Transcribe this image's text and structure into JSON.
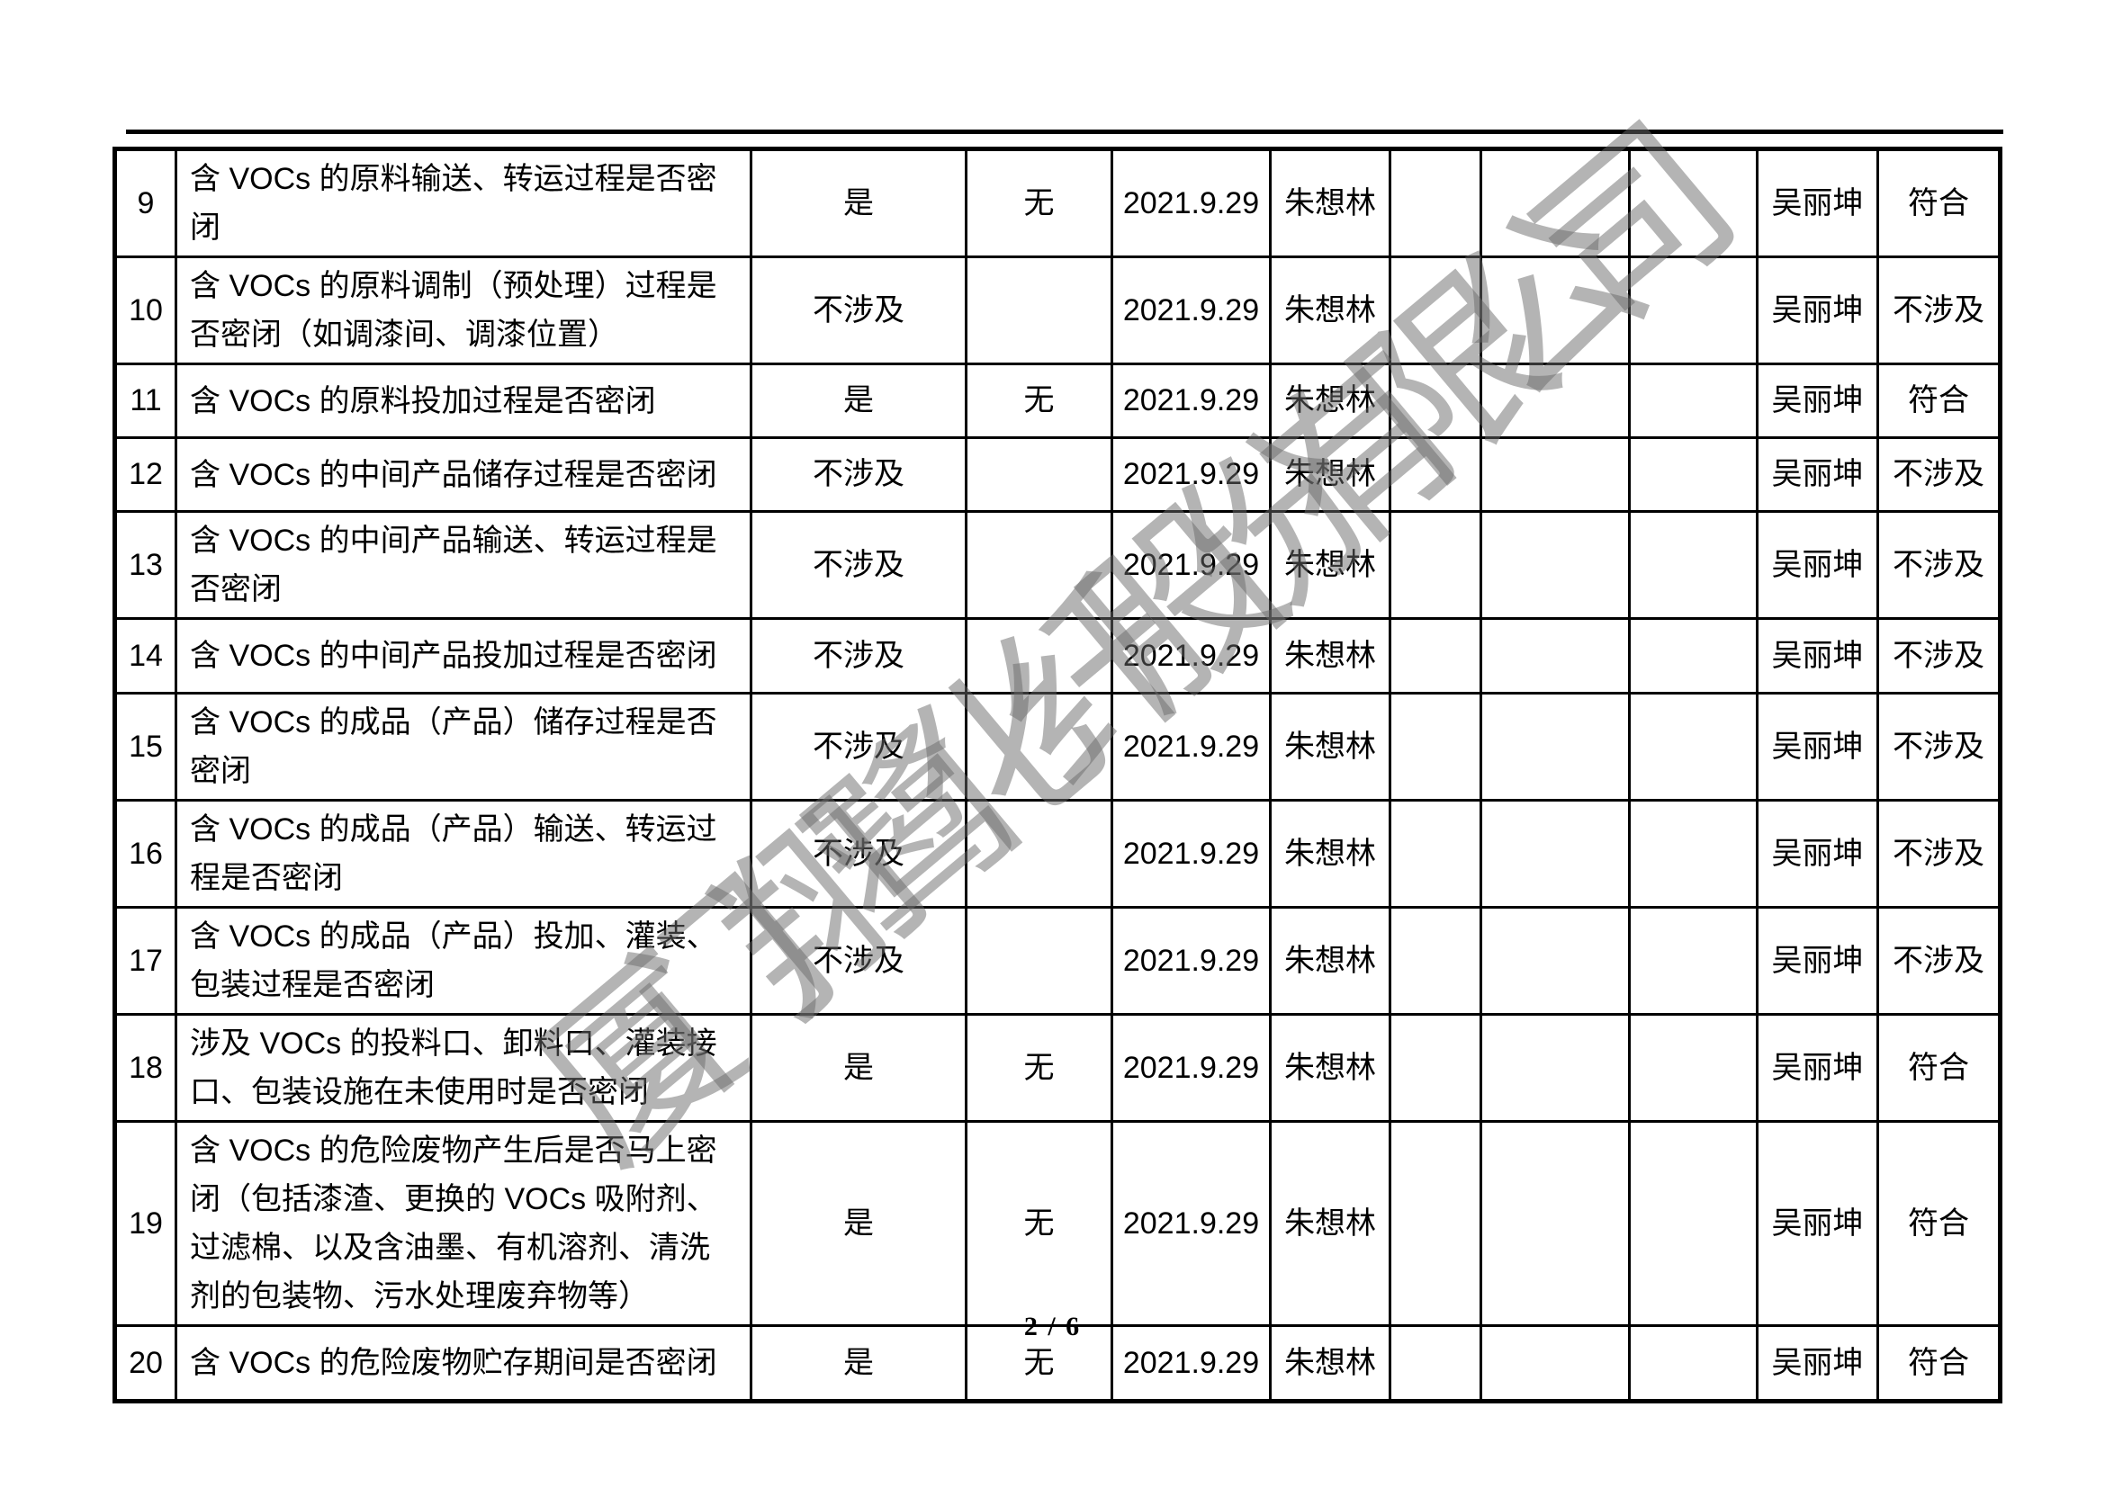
{
  "watermark": {
    "text": "厦门翔鹭化纤股份有限公司"
  },
  "footer": {
    "page_indicator": "2 / 6"
  },
  "table": {
    "rows": [
      {
        "no": "9",
        "item": "含 VOCs 的原料输送、转运过程是否密闭",
        "answer": "是",
        "problem": "无",
        "date": "2021.9.29",
        "inspector": "朱想林",
        "blank1": "",
        "blank2": "",
        "blank3": "",
        "reviewer": "吴丽坤",
        "conclusion": "符合"
      },
      {
        "no": "10",
        "item": "含 VOCs 的原料调制（预处理）过程是否密闭（如调漆间、调漆位置）",
        "answer": "不涉及",
        "problem": "",
        "date": "2021.9.29",
        "inspector": "朱想林",
        "blank1": "",
        "blank2": "",
        "blank3": "",
        "reviewer": "吴丽坤",
        "conclusion": "不涉及"
      },
      {
        "no": "11",
        "item": "含 VOCs 的原料投加过程是否密闭",
        "answer": "是",
        "problem": "无",
        "date": "2021.9.29",
        "inspector": "朱想林",
        "blank1": "",
        "blank2": "",
        "blank3": "",
        "reviewer": "吴丽坤",
        "conclusion": "符合"
      },
      {
        "no": "12",
        "item": "含 VOCs 的中间产品储存过程是否密闭",
        "answer": "不涉及",
        "problem": "",
        "date": "2021.9.29",
        "inspector": "朱想林",
        "blank1": "",
        "blank2": "",
        "blank3": "",
        "reviewer": "吴丽坤",
        "conclusion": "不涉及"
      },
      {
        "no": "13",
        "item": "含 VOCs 的中间产品输送、转运过程是否密闭",
        "answer": "不涉及",
        "problem": "",
        "date": "2021.9.29",
        "inspector": "朱想林",
        "blank1": "",
        "blank2": "",
        "blank3": "",
        "reviewer": "吴丽坤",
        "conclusion": "不涉及"
      },
      {
        "no": "14",
        "item": "含 VOCs 的中间产品投加过程是否密闭",
        "answer": "不涉及",
        "problem": "",
        "date": "2021.9.29",
        "inspector": "朱想林",
        "blank1": "",
        "blank2": "",
        "blank3": "",
        "reviewer": "吴丽坤",
        "conclusion": "不涉及"
      },
      {
        "no": "15",
        "item": "含 VOCs 的成品（产品）储存过程是否密闭",
        "answer": "不涉及",
        "problem": "",
        "date": "2021.9.29",
        "inspector": "朱想林",
        "blank1": "",
        "blank2": "",
        "blank3": "",
        "reviewer": "吴丽坤",
        "conclusion": "不涉及"
      },
      {
        "no": "16",
        "item": "含 VOCs 的成品（产品）输送、转运过程是否密闭",
        "answer": "不涉及",
        "problem": "",
        "date": "2021.9.29",
        "inspector": "朱想林",
        "blank1": "",
        "blank2": "",
        "blank3": "",
        "reviewer": "吴丽坤",
        "conclusion": "不涉及"
      },
      {
        "no": "17",
        "item": "含 VOCs 的成品（产品）投加、灌装、包装过程是否密闭",
        "answer": "不涉及",
        "problem": "",
        "date": "2021.9.29",
        "inspector": "朱想林",
        "blank1": "",
        "blank2": "",
        "blank3": "",
        "reviewer": "吴丽坤",
        "conclusion": "不涉及"
      },
      {
        "no": "18",
        "item": "涉及 VOCs 的投料口、卸料口、灌装接口、包装设施在未使用时是否密闭",
        "answer": "是",
        "problem": "无",
        "date": "2021.9.29",
        "inspector": "朱想林",
        "blank1": "",
        "blank2": "",
        "blank3": "",
        "reviewer": "吴丽坤",
        "conclusion": "符合"
      },
      {
        "no": "19",
        "item": "含 VOCs 的危险废物产生后是否马上密闭（包括漆渣、更换的 VOCs 吸附剂、过滤棉、以及含油墨、有机溶剂、清洗剂的包装物、污水处理废弃物等）",
        "answer": "是",
        "problem": "无",
        "date": "2021.9.29",
        "inspector": "朱想林",
        "blank1": "",
        "blank2": "",
        "blank3": "",
        "reviewer": "吴丽坤",
        "conclusion": "符合"
      },
      {
        "no": "20",
        "item": "含 VOCs 的危险废物贮存期间是否密闭",
        "answer": "是",
        "problem": "无",
        "date": "2021.9.29",
        "inspector": "朱想林",
        "blank1": "",
        "blank2": "",
        "blank3": "",
        "reviewer": "吴丽坤",
        "conclusion": "符合"
      }
    ]
  }
}
